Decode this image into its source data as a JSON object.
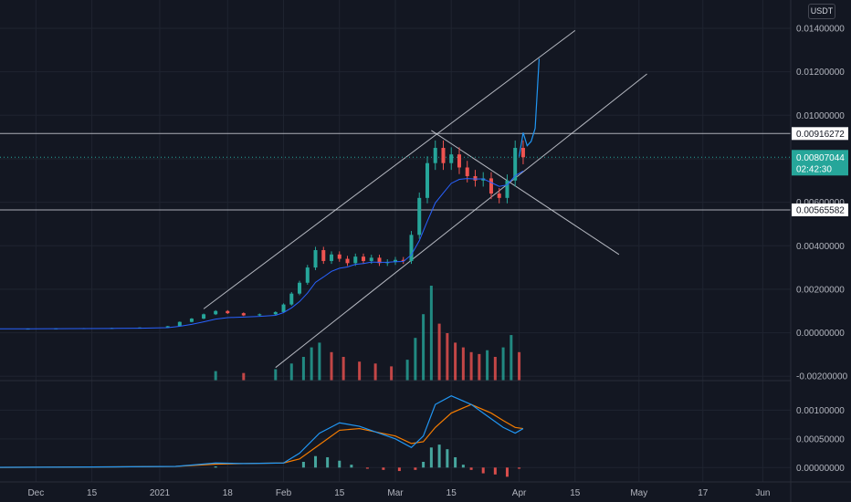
{
  "currency_label": "USDT",
  "colors": {
    "background": "#131722",
    "grid": "#1f2430",
    "up": "#26a69a",
    "down": "#ef5350",
    "ma": "#2962ff",
    "macd": "#2196f3",
    "signal": "#f57c00",
    "drawing": "#d1d4dc",
    "projection": "#2196f3",
    "last_price_bg": "#26a69a"
  },
  "chart_data": {
    "type": "candlestick",
    "price_axis": {
      "ticks": [
        "0.01400000",
        "0.01200000",
        "0.01000000",
        "0.00800000",
        "0.00600000",
        "0.00400000",
        "0.00200000",
        "0.00000000",
        "-0.00200000"
      ],
      "tick_values": [
        0.014,
        0.012,
        0.01,
        0.008,
        0.006,
        0.004,
        0.002,
        0.0,
        -0.002
      ],
      "range": [
        -0.0022,
        0.0153
      ]
    },
    "macd_axis": {
      "ticks": [
        "0.00100000",
        "0.00050000",
        "0.00000000"
      ],
      "tick_values": [
        0.001,
        0.0005,
        0.0
      ],
      "range": [
        -0.00025,
        0.0015
      ]
    },
    "time_axis": {
      "start": "2020-11-22",
      "end": "2021-06-08",
      "ticks": [
        {
          "label": "Dec",
          "date": "2020-12-01"
        },
        {
          "label": "15",
          "date": "2020-12-15"
        },
        {
          "label": "2021",
          "date": "2021-01-01"
        },
        {
          "label": "18",
          "date": "2021-01-18"
        },
        {
          "label": "Feb",
          "date": "2021-02-01"
        },
        {
          "label": "15",
          "date": "2021-02-15"
        },
        {
          "label": "Mar",
          "date": "2021-03-01"
        },
        {
          "label": "15",
          "date": "2021-03-15"
        },
        {
          "label": "Apr",
          "date": "2021-04-01"
        },
        {
          "label": "15",
          "date": "2021-04-15"
        },
        {
          "label": "May",
          "date": "2021-05-01"
        },
        {
          "label": "17",
          "date": "2021-05-17"
        },
        {
          "label": "Jun",
          "date": "2021-06-01"
        }
      ]
    },
    "price_labels": [
      {
        "label": "0.00916272",
        "value": 0.00916,
        "style": "line"
      },
      {
        "label": "0.00807044",
        "value": 0.00807,
        "style": "last",
        "countdown": "02:42:30"
      },
      {
        "label": "0.00565582",
        "value": 0.00565,
        "style": "line"
      }
    ],
    "horizontal_lines": [
      0.00916,
      0.00565
    ],
    "close_series": [
      [
        "2020-11-22",
        0.00018
      ],
      [
        "2020-11-29",
        0.00019
      ],
      [
        "2020-12-06",
        0.0002
      ],
      [
        "2020-12-13",
        0.00021
      ],
      [
        "2020-12-20",
        0.00022
      ],
      [
        "2020-12-27",
        0.00024
      ],
      [
        "2021-01-03",
        0.0003
      ],
      [
        "2021-01-06",
        0.0005
      ],
      [
        "2021-01-09",
        0.00065
      ],
      [
        "2021-01-12",
        0.00085
      ],
      [
        "2021-01-15",
        0.001
      ],
      [
        "2021-01-18",
        0.0009
      ],
      [
        "2021-01-22",
        0.0008
      ],
      [
        "2021-01-26",
        0.00085
      ],
      [
        "2021-01-30",
        0.00095
      ],
      [
        "2021-02-01",
        0.0013
      ],
      [
        "2021-02-03",
        0.0018
      ],
      [
        "2021-02-05",
        0.0023
      ],
      [
        "2021-02-07",
        0.003
      ],
      [
        "2021-02-09",
        0.0038
      ],
      [
        "2021-02-11",
        0.0033
      ],
      [
        "2021-02-13",
        0.0036
      ],
      [
        "2021-02-15",
        0.0034
      ],
      [
        "2021-02-17",
        0.0032
      ],
      [
        "2021-02-19",
        0.0035
      ],
      [
        "2021-02-21",
        0.0033
      ],
      [
        "2021-02-23",
        0.00345
      ],
      [
        "2021-02-25",
        0.0032
      ],
      [
        "2021-02-27",
        0.00325
      ],
      [
        "2021-03-01",
        0.00335
      ],
      [
        "2021-03-03",
        0.0033
      ],
      [
        "2021-03-05",
        0.0045
      ],
      [
        "2021-03-07",
        0.0062
      ],
      [
        "2021-03-09",
        0.0078
      ],
      [
        "2021-03-11",
        0.0085
      ],
      [
        "2021-03-13",
        0.0078
      ],
      [
        "2021-03-15",
        0.0082
      ],
      [
        "2021-03-17",
        0.0076
      ],
      [
        "2021-03-19",
        0.0072
      ],
      [
        "2021-03-21",
        0.007
      ],
      [
        "2021-03-23",
        0.0071
      ],
      [
        "2021-03-25",
        0.0064
      ],
      [
        "2021-03-27",
        0.0062
      ],
      [
        "2021-03-29",
        0.007
      ],
      [
        "2021-03-31",
        0.0085
      ],
      [
        "2021-04-02",
        0.00807
      ]
    ],
    "volume": {
      "range": [
        0,
        1.1e-06
      ],
      "series": [
        [
          "2021-01-15",
          0.1
        ],
        [
          "2021-01-22",
          0.08
        ],
        [
          "2021-01-30",
          0.12
        ],
        [
          "2021-02-03",
          0.18
        ],
        [
          "2021-02-06",
          0.25
        ],
        [
          "2021-02-08",
          0.35
        ],
        [
          "2021-02-10",
          0.4
        ],
        [
          "2021-02-13",
          0.3
        ],
        [
          "2021-02-16",
          0.25
        ],
        [
          "2021-02-20",
          0.2
        ],
        [
          "2021-02-24",
          0.18
        ],
        [
          "2021-02-28",
          0.15
        ],
        [
          "2021-03-04",
          0.22
        ],
        [
          "2021-03-06",
          0.45
        ],
        [
          "2021-03-08",
          0.7
        ],
        [
          "2021-03-10",
          1.0
        ],
        [
          "2021-03-12",
          0.6
        ],
        [
          "2021-03-14",
          0.5
        ],
        [
          "2021-03-16",
          0.4
        ],
        [
          "2021-03-18",
          0.35
        ],
        [
          "2021-03-20",
          0.3
        ],
        [
          "2021-03-22",
          0.28
        ],
        [
          "2021-03-24",
          0.32
        ],
        [
          "2021-03-26",
          0.25
        ],
        [
          "2021-03-28",
          0.35
        ],
        [
          "2021-03-30",
          0.48
        ],
        [
          "2021-04-01",
          0.3
        ]
      ]
    },
    "projection_path": [
      [
        "2021-04-01",
        0.0081
      ],
      [
        "2021-04-02",
        0.0092
      ],
      [
        "2021-04-03",
        0.0086
      ],
      [
        "2021-04-04",
        0.0088
      ],
      [
        "2021-04-05",
        0.0094
      ],
      [
        "2021-04-06",
        0.0126
      ]
    ],
    "channel_lines": [
      [
        [
          "2021-01-12",
          0.0011
        ],
        [
          "2021-04-15",
          0.0139
        ]
      ],
      [
        [
          "2021-01-30",
          -0.0016
        ],
        [
          "2021-05-03",
          0.0119
        ]
      ],
      [
        [
          "2021-03-10",
          0.0093
        ],
        [
          "2021-04-26",
          0.0036
        ]
      ]
    ],
    "macd": [
      [
        "2020-11-22",
        5e-06
      ],
      [
        "2020-12-15",
        1e-05
      ],
      [
        "2021-01-05",
        2e-05
      ],
      [
        "2021-01-15",
        8e-05
      ],
      [
        "2021-01-22",
        7e-05
      ],
      [
        "2021-02-01",
        8e-05
      ],
      [
        "2021-02-05",
        0.00025
      ],
      [
        "2021-02-10",
        0.0006
      ],
      [
        "2021-02-15",
        0.00078
      ],
      [
        "2021-02-20",
        0.00072
      ],
      [
        "2021-03-01",
        0.0005
      ],
      [
        "2021-03-05",
        0.00035
      ],
      [
        "2021-03-08",
        0.00055
      ],
      [
        "2021-03-11",
        0.0011
      ],
      [
        "2021-03-15",
        0.00125
      ],
      [
        "2021-03-20",
        0.0011
      ],
      [
        "2021-03-25",
        0.00085
      ],
      [
        "2021-03-28",
        0.0007
      ],
      [
        "2021-03-31",
        0.0006
      ],
      [
        "2021-04-02",
        0.00068
      ]
    ],
    "signal": [
      [
        "2020-11-22",
        3e-06
      ],
      [
        "2020-12-15",
        1e-05
      ],
      [
        "2021-01-05",
        2e-05
      ],
      [
        "2021-01-15",
        6e-05
      ],
      [
        "2021-01-22",
        7e-05
      ],
      [
        "2021-02-01",
        8e-05
      ],
      [
        "2021-02-05",
        0.00015
      ],
      [
        "2021-02-10",
        0.0004
      ],
      [
        "2021-02-15",
        0.00065
      ],
      [
        "2021-02-20",
        0.00068
      ],
      [
        "2021-03-01",
        0.00055
      ],
      [
        "2021-03-05",
        0.00042
      ],
      [
        "2021-03-08",
        0.00045
      ],
      [
        "2021-03-11",
        0.0007
      ],
      [
        "2021-03-15",
        0.00095
      ],
      [
        "2021-03-20",
        0.0011
      ],
      [
        "2021-03-25",
        0.00095
      ],
      [
        "2021-03-28",
        0.00082
      ],
      [
        "2021-03-31",
        0.0007
      ],
      [
        "2021-04-02",
        0.00068
      ]
    ],
    "histogram": [
      [
        "2021-01-15",
        2e-05
      ],
      [
        "2021-02-06",
        0.0001
      ],
      [
        "2021-02-09",
        0.0002
      ],
      [
        "2021-02-12",
        0.00018
      ],
      [
        "2021-02-15",
        0.00012
      ],
      [
        "2021-02-18",
        5e-05
      ],
      [
        "2021-02-22",
        -2e-05
      ],
      [
        "2021-02-26",
        -4e-05
      ],
      [
        "2021-03-02",
        -6e-05
      ],
      [
        "2021-03-06",
        -4e-05
      ],
      [
        "2021-03-08",
        0.0001
      ],
      [
        "2021-03-10",
        0.00035
      ],
      [
        "2021-03-12",
        0.0004
      ],
      [
        "2021-03-14",
        0.00032
      ],
      [
        "2021-03-16",
        0.00018
      ],
      [
        "2021-03-18",
        5e-05
      ],
      [
        "2021-03-20",
        -4e-05
      ],
      [
        "2021-03-23",
        -0.0001
      ],
      [
        "2021-03-26",
        -0.00012
      ],
      [
        "2021-03-29",
        -0.00016
      ],
      [
        "2021-04-01",
        -2e-05
      ]
    ]
  }
}
